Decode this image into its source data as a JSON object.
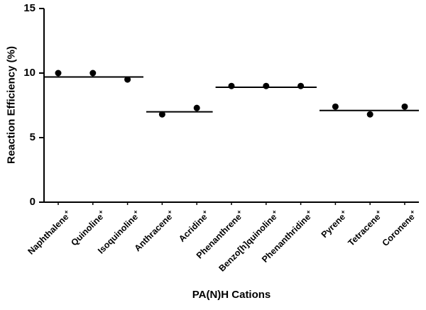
{
  "chart_data": {
    "type": "scatter",
    "title": "",
    "xlabel": "PA(N)H Cations",
    "ylabel": "Reaction Efficiency (%)",
    "ylim": [
      0,
      15
    ],
    "yticks": [
      0,
      5,
      10,
      15
    ],
    "grid": false,
    "legend": null,
    "charge_symbol": "+",
    "categories": [
      "Naphthalene",
      "Quinoline",
      "Isoquinoline",
      "Anthracene",
      "Acridine",
      "Phenanthrene",
      "Benzo[h]quinoline",
      "Phenanthridine",
      "Pyrene",
      "Tetracene",
      "Coronene"
    ],
    "values": [
      10.0,
      10.0,
      9.5,
      6.8,
      7.3,
      9.0,
      9.0,
      9.0,
      7.4,
      6.8,
      7.4
    ],
    "group_mean_lines": [
      {
        "from": 0,
        "to": 2,
        "mean": 9.7,
        "members": [
          "Naphthalene",
          "Quinoline",
          "Isoquinoline"
        ]
      },
      {
        "from": 3,
        "to": 4,
        "mean": 7.0,
        "members": [
          "Anthracene",
          "Acridine"
        ]
      },
      {
        "from": 5,
        "to": 7,
        "mean": 8.9,
        "members": [
          "Phenanthrene",
          "Benzo[h]quinoline",
          "Phenanthridine"
        ]
      },
      {
        "from": 8,
        "to": 10,
        "mean": 7.1,
        "members": [
          "Pyrene",
          "Tetracene",
          "Coronene"
        ]
      }
    ],
    "marker": {
      "shape": "circle",
      "color": "#000000",
      "radius": 4.5
    }
  },
  "colors": {
    "axis": "#000000",
    "background": "#ffffff",
    "text": "#000000"
  }
}
